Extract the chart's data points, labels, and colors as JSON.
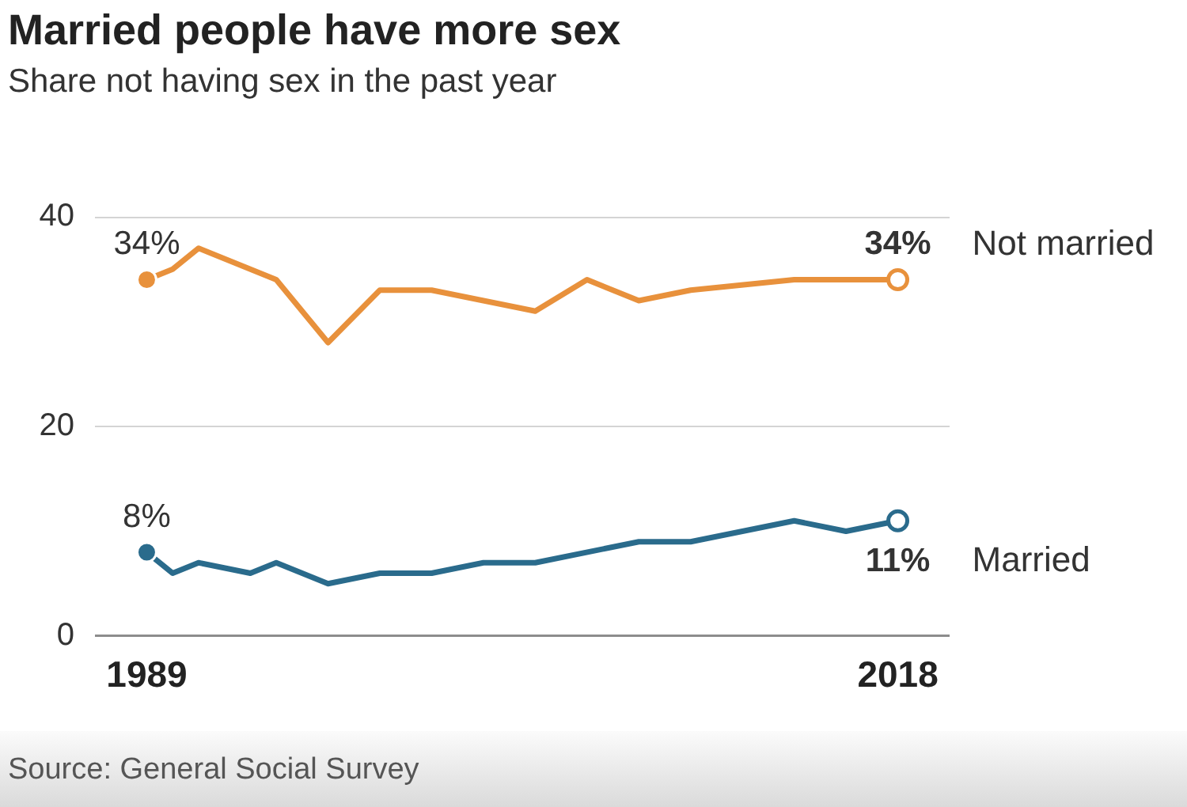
{
  "chart_data": {
    "type": "line",
    "title": "Married people have more sex",
    "subtitle": "Share not having sex in the past year",
    "annotations": [
      "Source: General Social Survey"
    ],
    "xlim": [
      1987,
      2020
    ],
    "xticks": [
      1989,
      2018
    ],
    "ylim": [
      0,
      40
    ],
    "yticks": [
      0,
      20,
      40
    ],
    "grid": "y",
    "legend": false,
    "series": [
      {
        "name": "Not married",
        "color": "#e8913c",
        "x": [
          1989,
          1990,
          1991,
          1994,
          1996,
          1998,
          2000,
          2004,
          2006,
          2008,
          2010,
          2014,
          2018
        ],
        "values": [
          34,
          35,
          37,
          34,
          28,
          33,
          33,
          31,
          34,
          32,
          33,
          34,
          34
        ],
        "value_labels": [
          "34%",
          null,
          null,
          null,
          null,
          null,
          null,
          null,
          null,
          null,
          null,
          null,
          "34%"
        ]
      },
      {
        "name": "Married",
        "color": "#2a6b8c",
        "x": [
          1989,
          1990,
          1991,
          1993,
          1994,
          1996,
          1998,
          2000,
          2002,
          2004,
          2008,
          2010,
          2014,
          2016,
          2018
        ],
        "values": [
          8,
          6,
          7,
          6,
          7,
          5,
          6,
          6,
          7,
          7,
          9,
          9,
          11,
          10,
          11
        ],
        "value_labels": [
          "8%",
          null,
          null,
          null,
          null,
          null,
          null,
          null,
          null,
          null,
          null,
          null,
          null,
          null,
          "11%"
        ]
      }
    ]
  }
}
